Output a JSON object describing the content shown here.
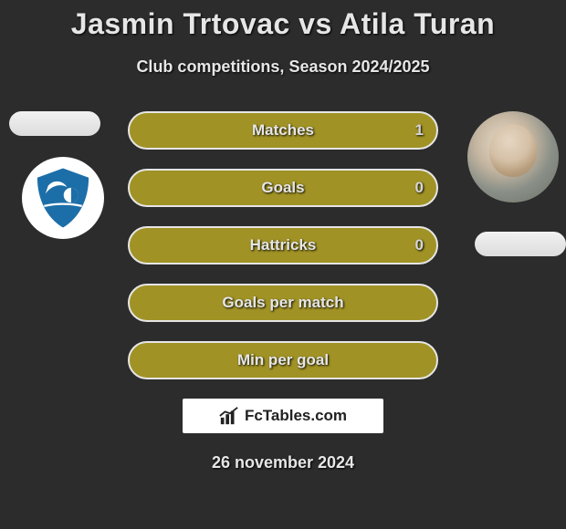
{
  "title": "Jasmin Trtovac vs Atila Turan",
  "subtitle": "Club competitions, Season 2024/2025",
  "date": "26 november 2024",
  "branding_text": "FcTables.com",
  "theme": {
    "bg": "#2c2c2c",
    "pill_fill": "#a09225",
    "pill_border": "#e6e6e6",
    "text": "#e6e6e6",
    "value_text": "#d6d6d6",
    "title_fontsize": 32,
    "subtitle_fontsize": 18,
    "pill_width": 340,
    "pill_height": 42,
    "pill_gap": 21
  },
  "players": {
    "left": {
      "name": "Jasmin Trtovac",
      "avatar_kind": "placeholder-white"
    },
    "right": {
      "name": "Atila Turan",
      "avatar_kind": "photo"
    }
  },
  "club_left": {
    "bg": "#ffffff",
    "primary": "#1c6ea8",
    "accent": "#ffffff"
  },
  "rows": [
    {
      "label": "Matches",
      "left": "",
      "right": "1"
    },
    {
      "label": "Goals",
      "left": "",
      "right": "0"
    },
    {
      "label": "Hattricks",
      "left": "",
      "right": "0"
    },
    {
      "label": "Goals per match",
      "left": "",
      "right": ""
    },
    {
      "label": "Min per goal",
      "left": "",
      "right": ""
    }
  ]
}
